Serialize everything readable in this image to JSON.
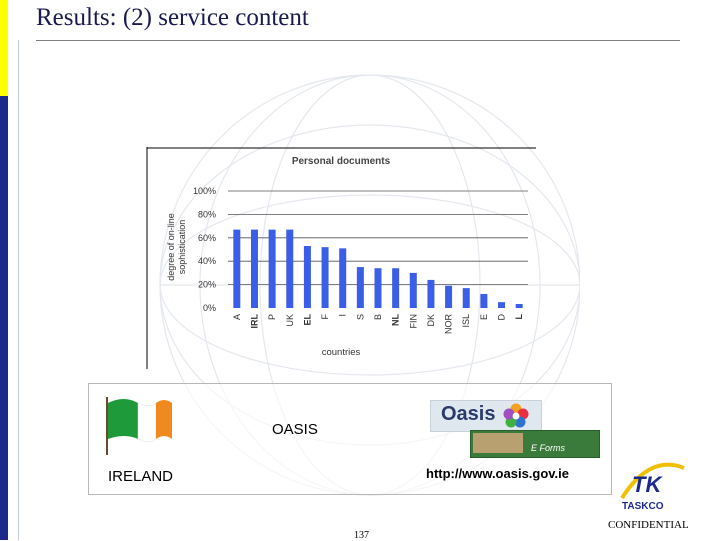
{
  "slide": {
    "title": "Results: (2) service content",
    "confidential": "CONFIDENTIAL",
    "page_number": "137"
  },
  "info_box": {
    "country": "IRELAND",
    "service_name": "OASIS",
    "url": "http://www.oasis.gov.ie",
    "oasis_logo_text": "Oasis",
    "eforms_text": "E Forms"
  },
  "logo": {
    "company": "TASKCO",
    "mark": "TK"
  },
  "colors": {
    "bar": "#3b5ee8",
    "yellow_accent": "#ffff00",
    "blue_accent": "#1c2a8c"
  },
  "chart_data": {
    "type": "bar",
    "title": "Personal documents",
    "xlabel": "countries",
    "ylabel": "degree of on-line sophistication",
    "categories": [
      "A",
      "IRL",
      "P",
      "UK",
      "EL",
      "F",
      "I",
      "S",
      "B",
      "NL",
      "FIN",
      "DK",
      "NOR",
      "ISL",
      "E",
      "D",
      "L"
    ],
    "values": [
      67,
      67,
      67,
      67,
      53,
      52,
      51,
      35,
      34,
      34,
      30,
      24,
      19,
      17,
      12,
      5,
      0
    ],
    "bold_categories": [
      "IRL",
      "EL",
      "NL",
      "L"
    ],
    "yticks": [
      "0%",
      "20%",
      "40%",
      "60%",
      "80%",
      "100%"
    ],
    "ylim": [
      0,
      100
    ],
    "grid": true
  }
}
